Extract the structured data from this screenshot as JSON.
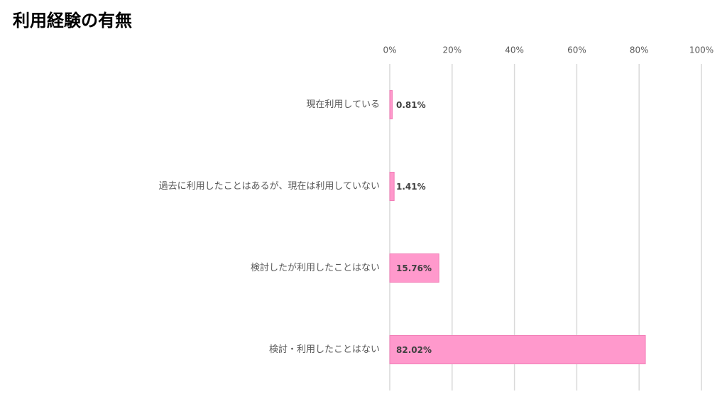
{
  "chart_data": {
    "type": "hbar",
    "title": "利用経験の有無",
    "categories": [
      "現在利用している",
      "過去に利用したことはあるが、現在は利用していない",
      "検討したが利用したことはない",
      "検討・利用したことはない"
    ],
    "values": [
      0.81,
      1.41,
      15.76,
      82.02
    ],
    "value_labels": [
      "0.81%",
      "1.41%",
      "15.76%",
      "82.02%"
    ],
    "color": "#ff99cc",
    "xlim": [
      0,
      100
    ],
    "xticks": [
      {
        "value": 0,
        "label": "0%"
      },
      {
        "value": 20,
        "label": "20%"
      },
      {
        "value": 40,
        "label": "40%"
      },
      {
        "value": 60,
        "label": "60%"
      },
      {
        "value": 80,
        "label": "80%"
      },
      {
        "value": 100,
        "label": "100%"
      }
    ],
    "grid": true
  }
}
